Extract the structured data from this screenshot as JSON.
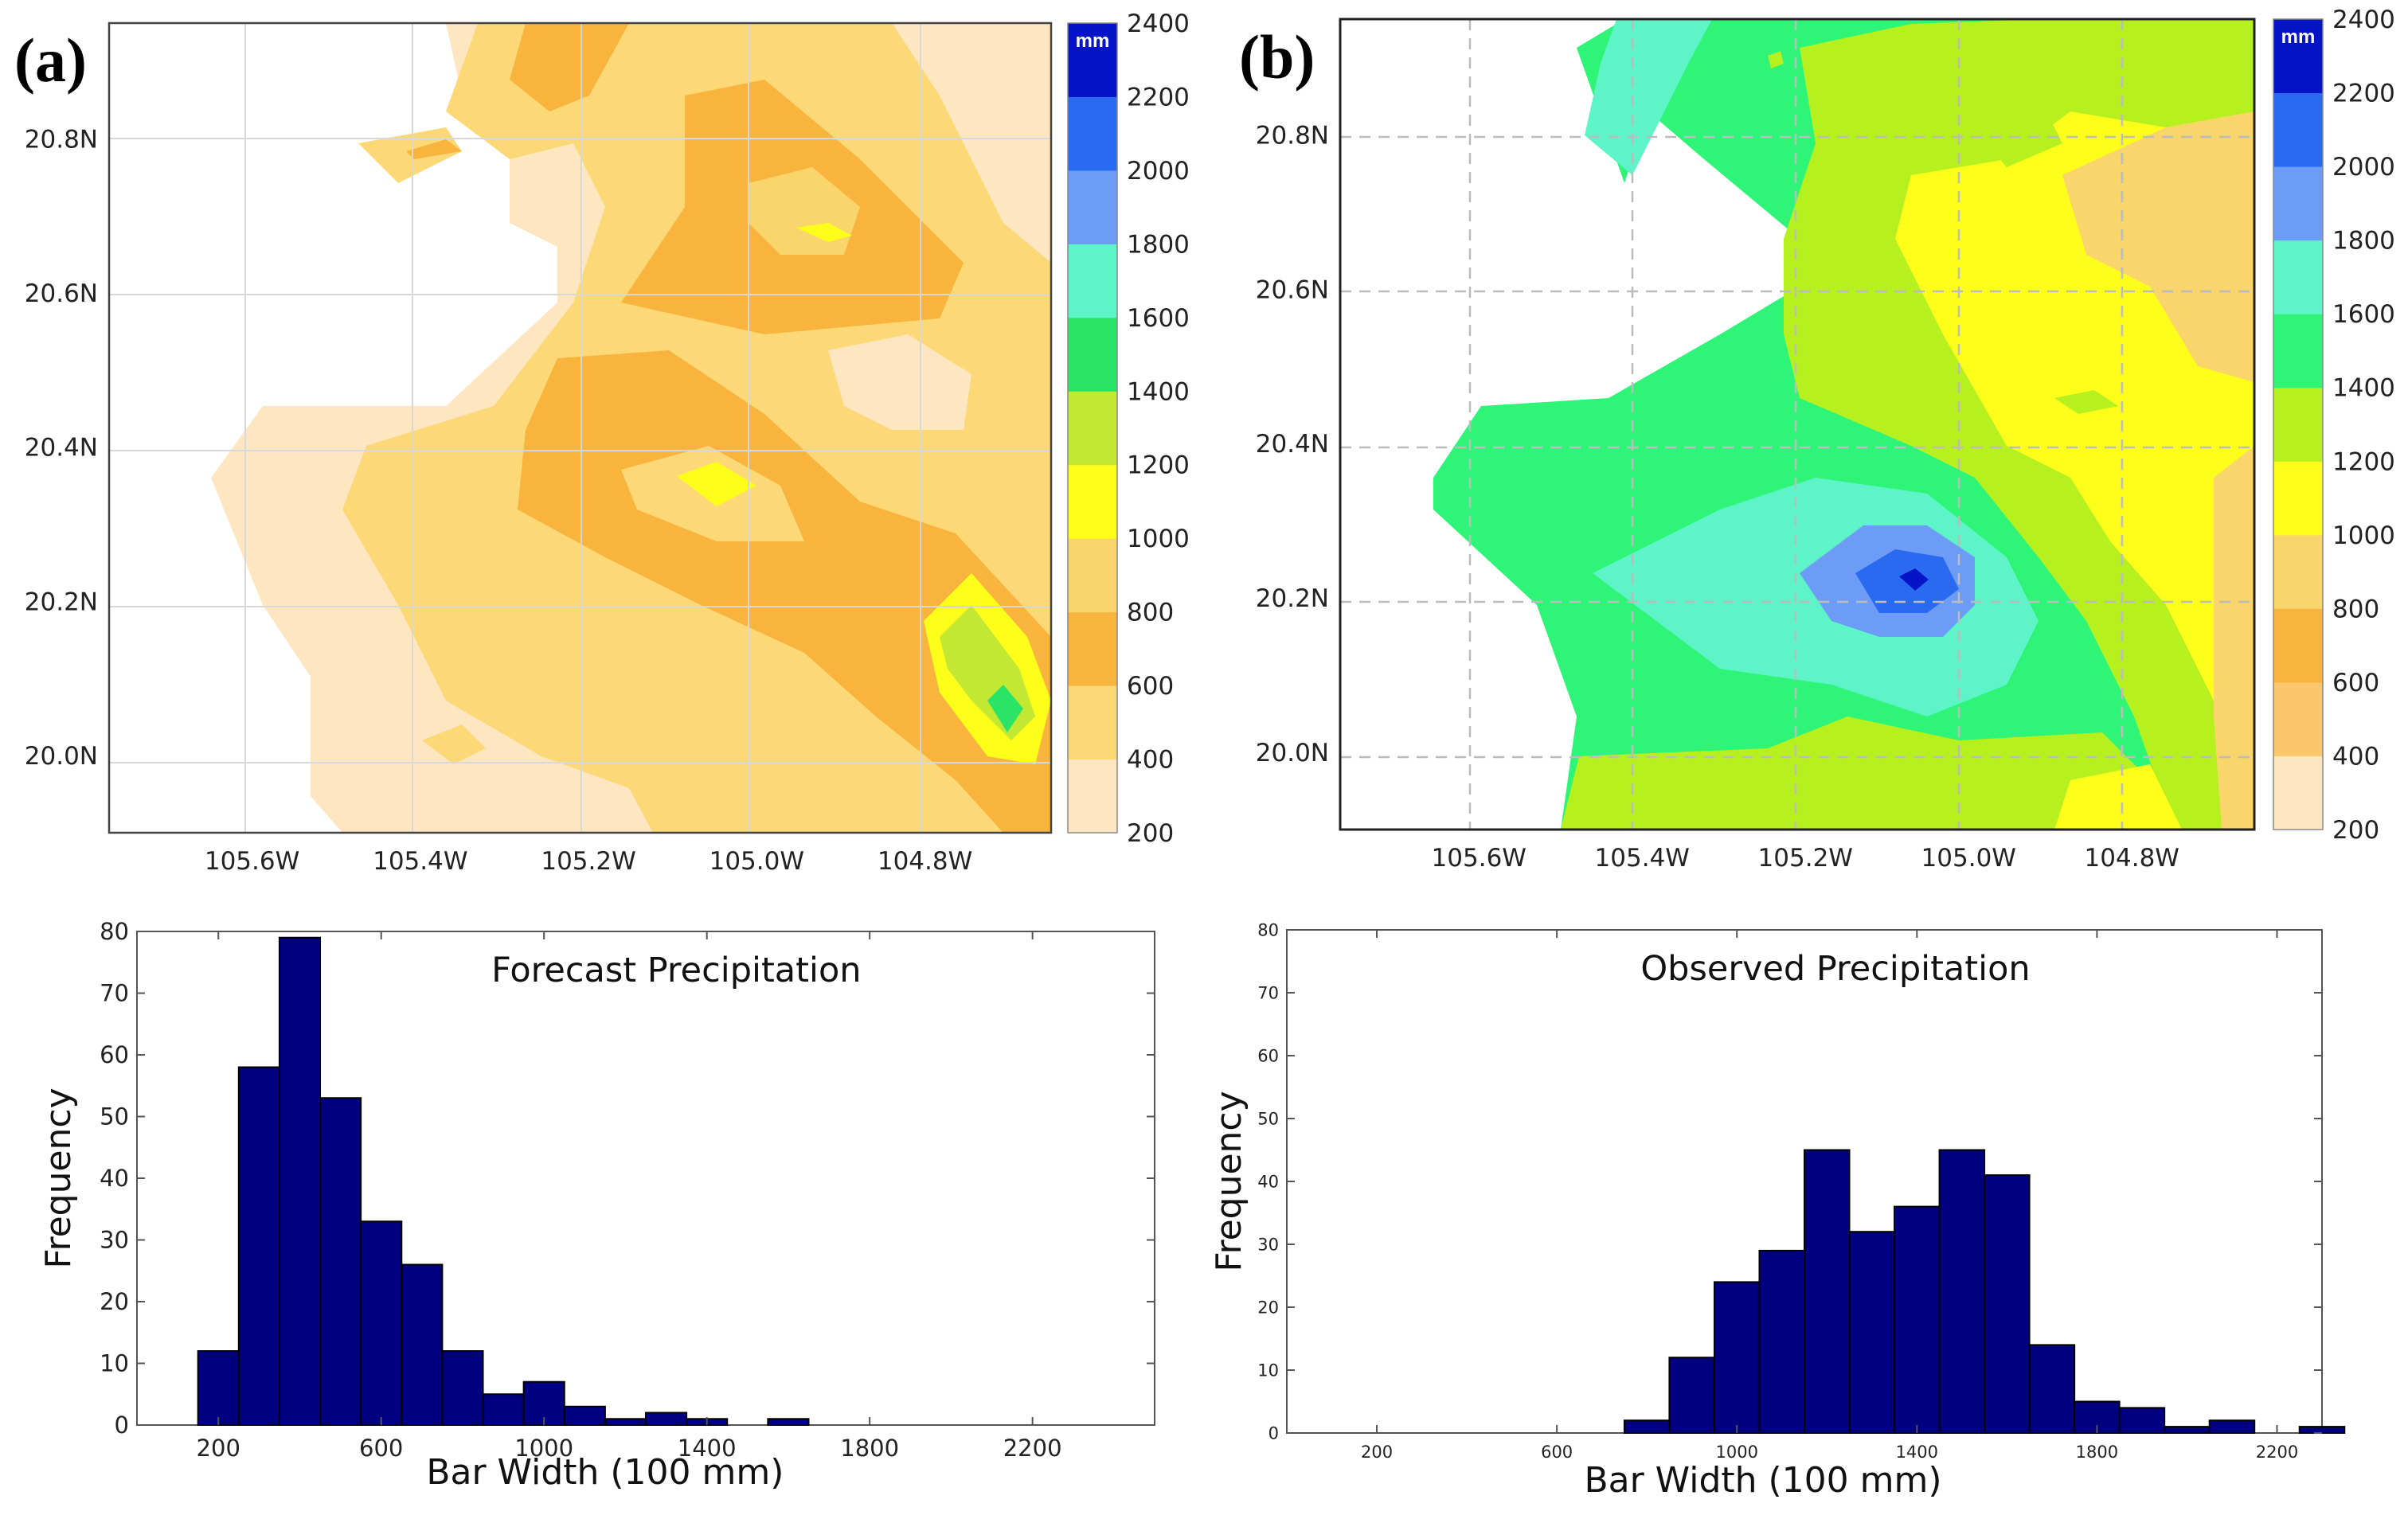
{
  "figure": {
    "panel_a_label": "(a)",
    "panel_b_label": "(b)"
  },
  "colorbar": {
    "unit": "mm",
    "levels": [
      200,
      400,
      600,
      800,
      1000,
      1200,
      1400,
      1600,
      1800,
      2000,
      2200,
      2400
    ],
    "colors_a": [
      "#fde6c0",
      "#fcd877",
      "#f9b43e",
      "#fad56b",
      "#fefe1b",
      "#c2e832",
      "#2ae468",
      "#5df5c8",
      "#6c9cf5",
      "#2a6af0",
      "#0614c8"
    ],
    "colors_b": [
      "#fde6c0",
      "#fbc76c",
      "#f9b43e",
      "#fad56b",
      "#fefe1b",
      "#b6f01e",
      "#2ef478",
      "#5df5c8",
      "#6c9cf5",
      "#2a6af0",
      "#0614c8"
    ],
    "tick_labels": [
      "200",
      "400",
      "600",
      "800",
      "1000",
      "1200",
      "1400",
      "1600",
      "1800",
      "2000",
      "2200",
      "2400"
    ]
  },
  "colors": {
    "bar_fill": "#000080",
    "bar_edge": "#000000",
    "map_white": "#ffffff"
  },
  "chart_data": [
    {
      "type": "contour",
      "panel": "(a)",
      "description_variable": "Forecast precipitation (mm)",
      "x_ticks": [
        "105.6W",
        "105.4W",
        "105.2W",
        "105.0W",
        "104.8W"
      ],
      "y_ticks": [
        "20.8N",
        "20.6N",
        "20.4N",
        "20.2N",
        "20.0N"
      ],
      "xlim": [
        105.77,
        104.65
      ],
      "ylim": [
        19.9,
        20.95
      ]
    },
    {
      "type": "contour",
      "panel": "(b)",
      "description_variable": "Observed precipitation (mm)",
      "x_ticks": [
        "105.6W",
        "105.4W",
        "105.2W",
        "105.0W",
        "104.8W"
      ],
      "y_ticks": [
        "20.8N",
        "20.6N",
        "20.4N",
        "20.2N",
        "20.0N"
      ],
      "xlim": [
        105.77,
        104.65
      ],
      "ylim": [
        19.9,
        20.95
      ]
    },
    {
      "type": "bar",
      "title": "Forecast Precipitation",
      "xlabel": "Bar Width (100 mm)",
      "ylabel": "Frequency",
      "xlim": [
        0,
        2500
      ],
      "ylim": [
        0,
        80
      ],
      "x_ticks": [
        200,
        600,
        1000,
        1400,
        1800,
        2200
      ],
      "y_ticks": [
        0,
        10,
        20,
        30,
        40,
        50,
        60,
        70,
        80
      ],
      "bin_width": 100,
      "bin_starts": [
        150,
        250,
        350,
        450,
        550,
        650,
        750,
        850,
        950,
        1050,
        1150,
        1250,
        1350,
        1450,
        1550
      ],
      "values": [
        12,
        58,
        79,
        53,
        33,
        26,
        12,
        5,
        7,
        3,
        1,
        2,
        1,
        0,
        1
      ]
    },
    {
      "type": "bar",
      "title": "Observed Precipitation",
      "xlabel": "Bar Width (100 mm)",
      "ylabel": "Frequency",
      "xlim": [
        0,
        2300
      ],
      "ylim": [
        0,
        80
      ],
      "x_ticks": [
        200,
        600,
        1000,
        1400,
        1800,
        2200
      ],
      "y_ticks": [
        0,
        10,
        20,
        30,
        40,
        50,
        60,
        70,
        80
      ],
      "bin_width": 100,
      "bin_starts": [
        750,
        850,
        950,
        1050,
        1150,
        1250,
        1350,
        1450,
        1550,
        1650,
        1750,
        1850,
        1950,
        2050,
        2150,
        2250
      ],
      "values": [
        2,
        12,
        24,
        29,
        45,
        32,
        36,
        45,
        41,
        14,
        5,
        4,
        1,
        2,
        0,
        1
      ]
    }
  ]
}
